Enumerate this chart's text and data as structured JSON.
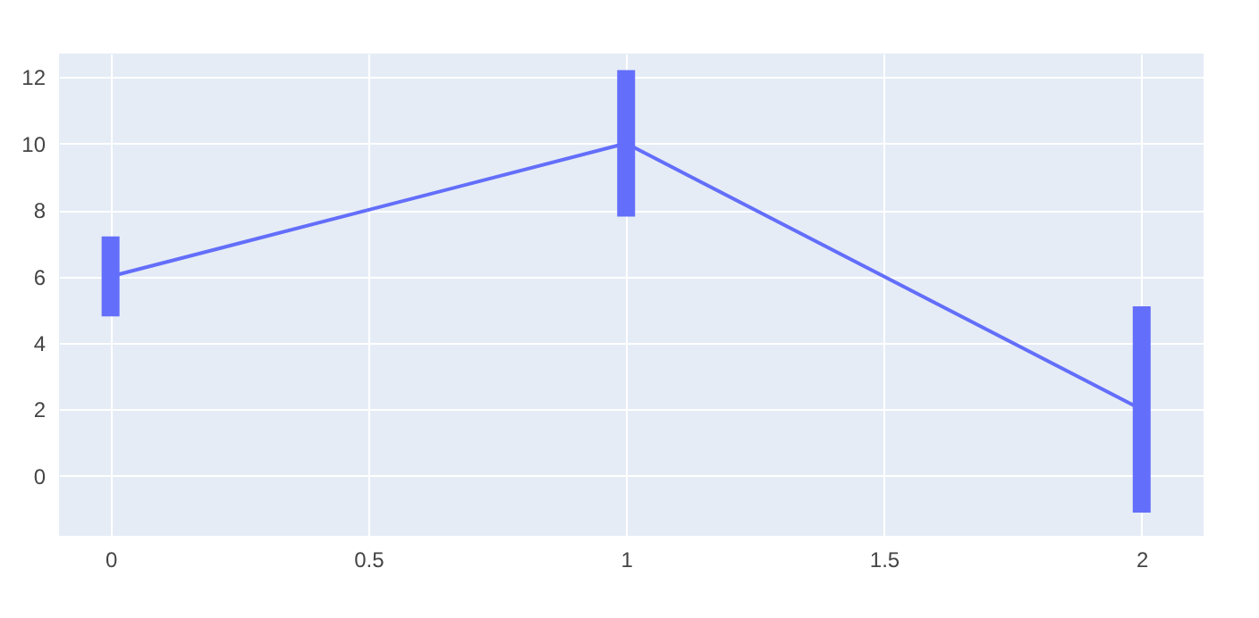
{
  "chart_data": {
    "type": "line",
    "x": [
      0,
      1,
      2
    ],
    "series": [
      {
        "color": "#636efa",
        "values": [
          6,
          10,
          2
        ],
        "errors": [
          1.2,
          2.2,
          3.1
        ]
      }
    ],
    "xlim": [
      -0.1,
      2.12
    ],
    "xticks": [
      0,
      0.5,
      1,
      1.5,
      2
    ],
    "ylim": [
      -1.8,
      12.7
    ],
    "yticks": [
      0,
      2,
      4,
      6,
      8,
      10,
      12
    ],
    "grid": true,
    "line_style": "solid"
  }
}
